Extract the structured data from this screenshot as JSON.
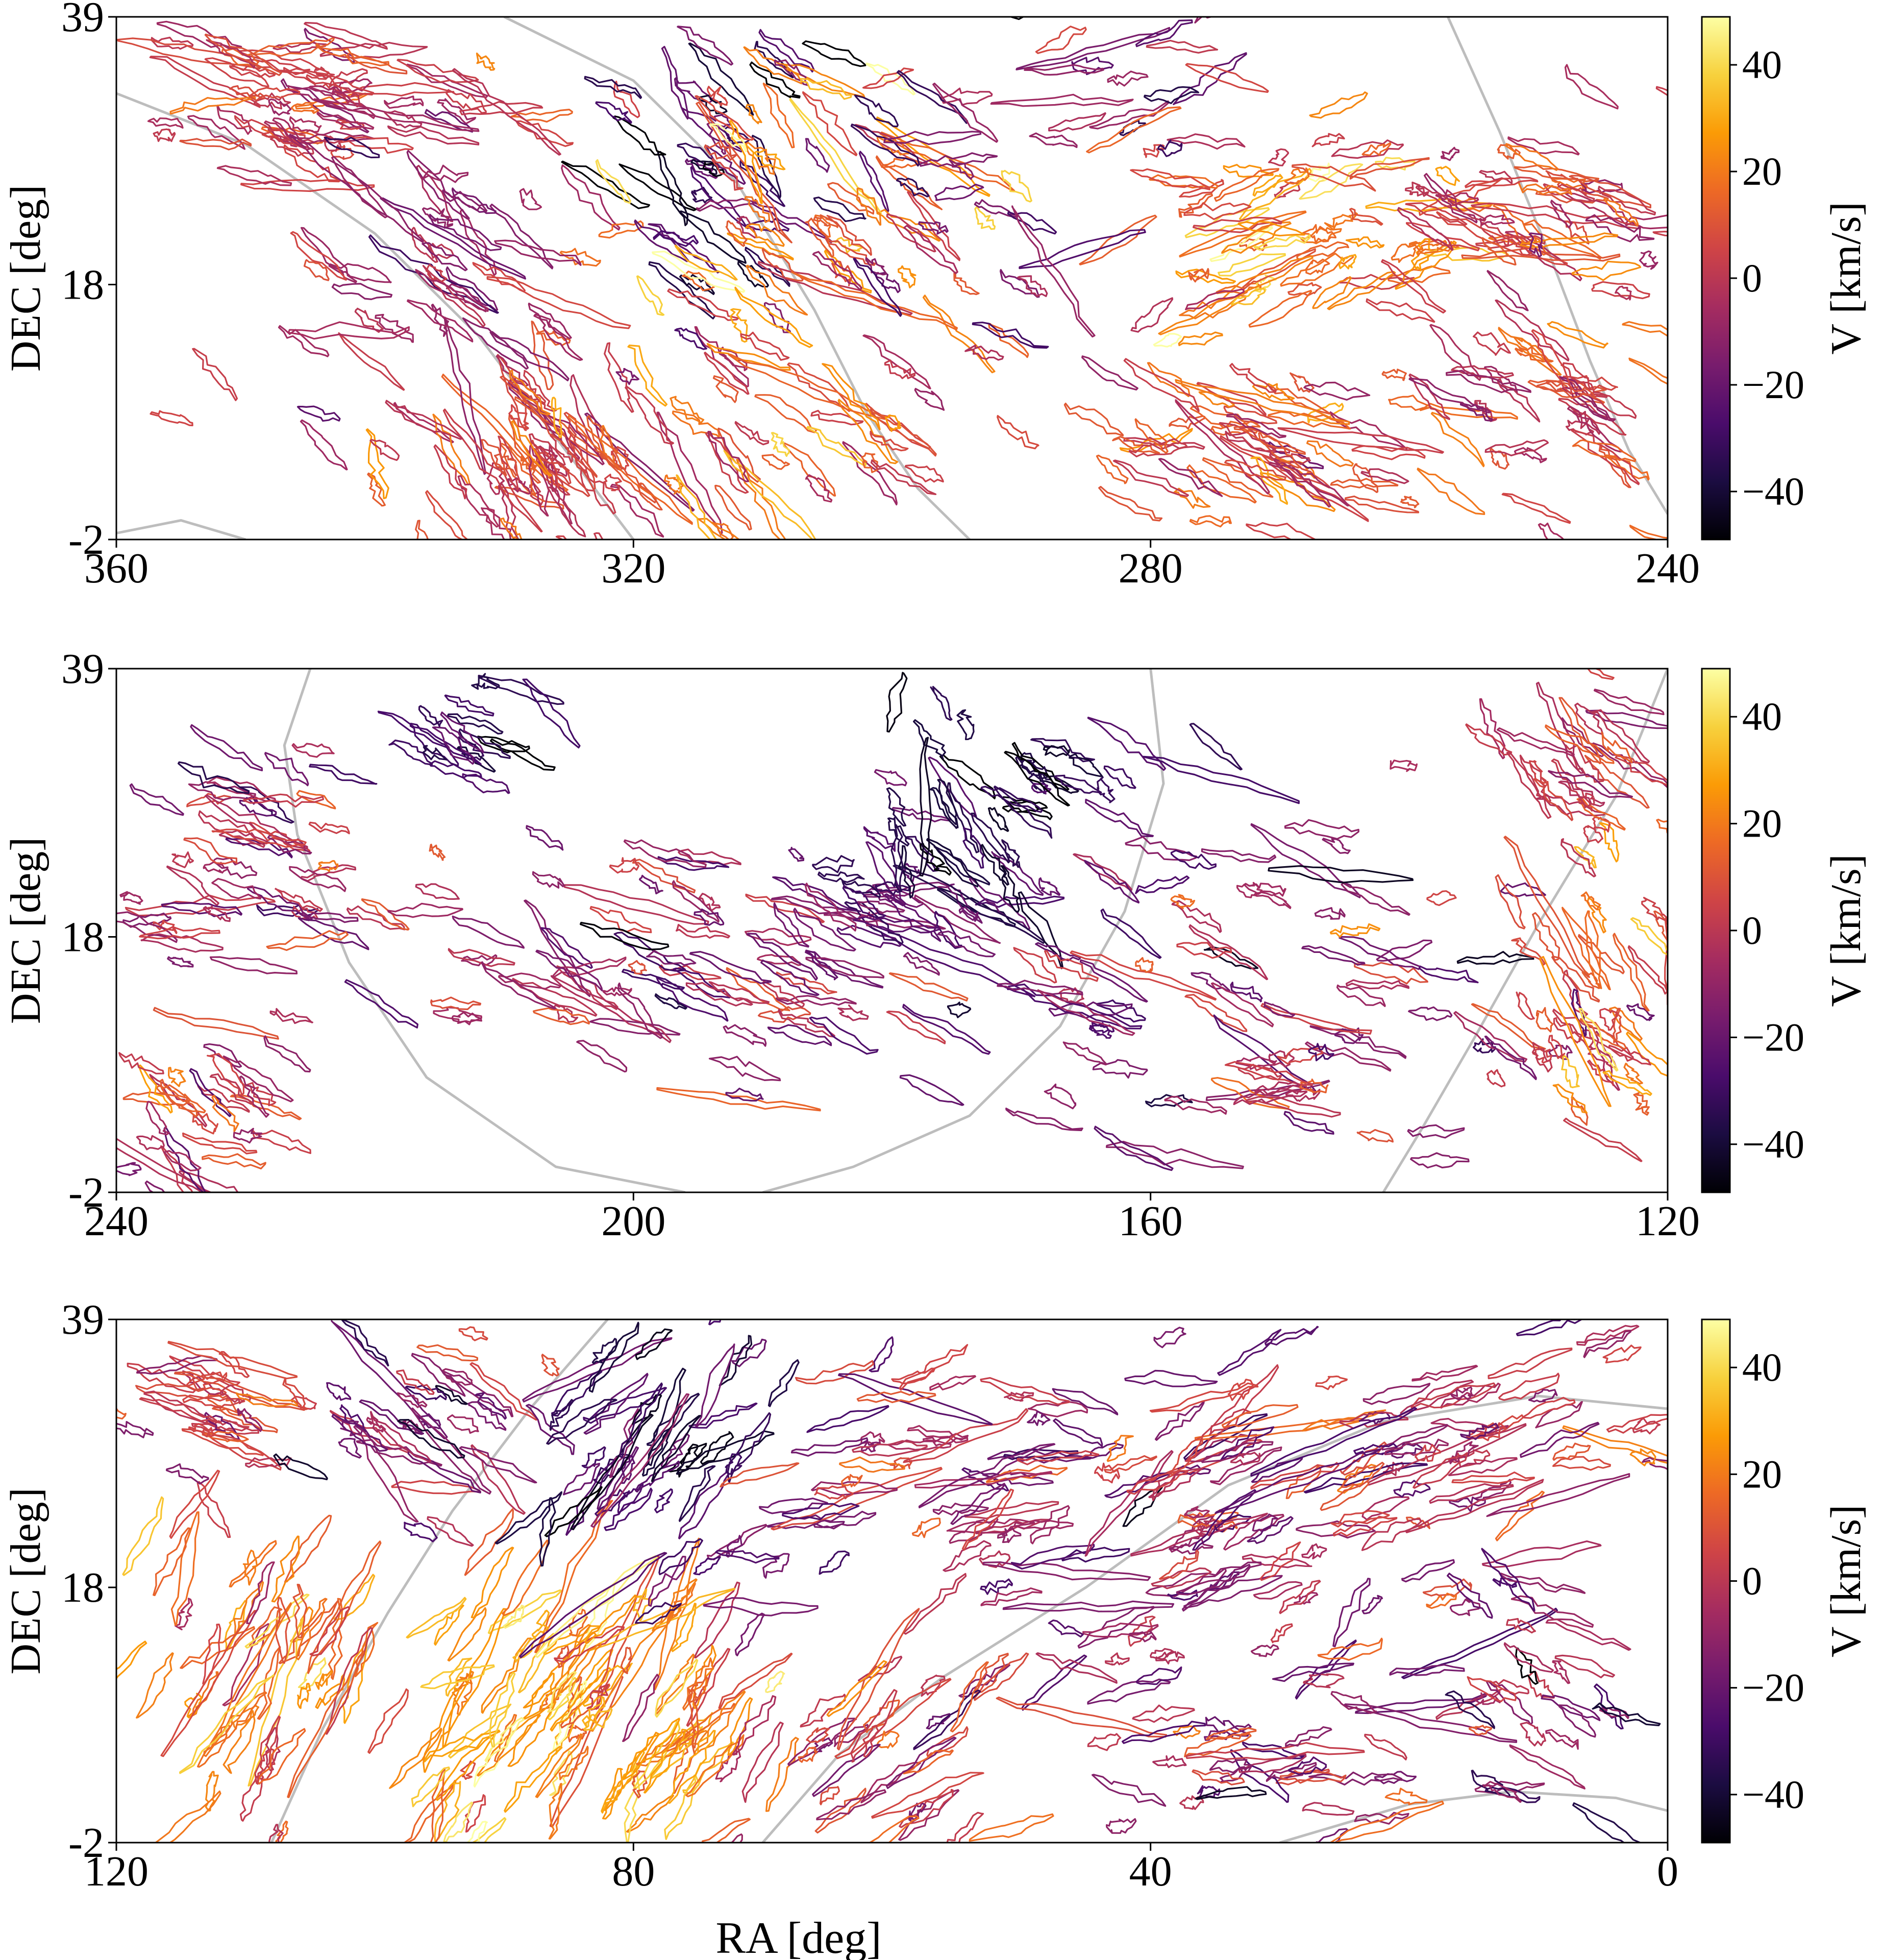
{
  "figure": {
    "xlabel": "RA [deg]"
  },
  "colorbar": {
    "label": "V [km/s]",
    "vmin": -49,
    "vmax": 49,
    "ticks": [
      40,
      20,
      0,
      -20,
      -40
    ],
    "tick_labels": [
      "40",
      "20",
      "0",
      "−20",
      "−40"
    ],
    "colormap": "inferno",
    "stops": [
      "#000004",
      "#1b0c41",
      "#4a0c6b",
      "#781c6d",
      "#a52c60",
      "#cf4446",
      "#ed6925",
      "#fb9b06",
      "#f7d13d",
      "#fcffa4"
    ]
  },
  "curve_color": "#bdbdbd",
  "chart_data": [
    {
      "type": "scatter",
      "panel": "top",
      "ylabel": "DEC [deg]",
      "xlim": [
        360,
        240
      ],
      "ylim": [
        -2,
        39
      ],
      "xticks": [
        360,
        320,
        280,
        240
      ],
      "xtick_labels": [
        "360",
        "320",
        "280",
        "240"
      ],
      "yticks": [
        39,
        18,
        -2
      ],
      "ytick_labels": [
        "39",
        "18",
        "-2"
      ],
      "guide_curves": [
        [
          [
            330,
            39
          ],
          [
            320,
            34
          ],
          [
            312,
            26
          ],
          [
            306,
            16
          ],
          [
            302,
            8
          ],
          [
            298,
            2
          ],
          [
            294,
            -2
          ]
        ],
        [
          [
            257,
            39
          ],
          [
            253,
            30
          ],
          [
            249,
            20
          ],
          [
            246,
            12
          ],
          [
            243,
            5
          ],
          [
            240,
            0
          ]
        ],
        [
          [
            360,
            33
          ],
          [
            350,
            29
          ],
          [
            340,
            22
          ],
          [
            332,
            14
          ],
          [
            326,
            6
          ],
          [
            320,
            -2
          ]
        ],
        [
          [
            360,
            -1.5
          ],
          [
            355,
            -0.5
          ],
          [
            350,
            -2
          ]
        ]
      ],
      "regions": [
        {
          "ra": 345,
          "dec": 33,
          "n": 70,
          "spread_ra": 13,
          "spread_dec": 5,
          "angle": -12,
          "v": 2,
          "dv": 8
        },
        {
          "ra": 327,
          "dec": 5,
          "n": 70,
          "spread_ra": 9,
          "spread_dec": 6,
          "angle": -55,
          "v": 5,
          "dv": 10
        },
        {
          "ra": 336,
          "dec": 20,
          "n": 55,
          "spread_ra": 14,
          "spread_dec": 10,
          "angle": -30,
          "v": -5,
          "dv": 10
        },
        {
          "ra": 314,
          "dec": 28,
          "n": 45,
          "spread_ra": 8,
          "spread_dec": 9,
          "angle": -35,
          "v": -28,
          "dv": 12
        },
        {
          "ra": 308,
          "dec": 24,
          "n": 55,
          "spread_ra": 10,
          "spread_dec": 10,
          "angle": -40,
          "v": 18,
          "dv": 14
        },
        {
          "ra": 306,
          "dec": 6,
          "n": 40,
          "spread_ra": 10,
          "spread_dec": 6,
          "angle": -40,
          "v": 12,
          "dv": 12
        },
        {
          "ra": 267,
          "dec": 20,
          "n": 60,
          "spread_ra": 10,
          "spread_dec": 8,
          "angle": 15,
          "v": 22,
          "dv": 14
        },
        {
          "ra": 272,
          "dec": 5,
          "n": 60,
          "spread_ra": 12,
          "spread_dec": 6,
          "angle": -25,
          "v": 8,
          "dv": 12
        },
        {
          "ra": 250,
          "dec": 24,
          "n": 55,
          "spread_ra": 11,
          "spread_dec": 5,
          "angle": -20,
          "v": 6,
          "dv": 12
        },
        {
          "ra": 247,
          "dec": 8,
          "n": 45,
          "spread_ra": 9,
          "spread_dec": 7,
          "angle": -30,
          "v": 3,
          "dv": 10
        },
        {
          "ra": 283,
          "dec": 30,
          "n": 35,
          "spread_ra": 14,
          "spread_dec": 8,
          "angle": 10,
          "v": -8,
          "dv": 18
        },
        {
          "ra": 296,
          "dec": 22,
          "n": 25,
          "spread_ra": 8,
          "spread_dec": 10,
          "angle": -30,
          "v": -10,
          "dv": 18
        }
      ]
    },
    {
      "type": "scatter",
      "panel": "middle",
      "ylabel": "DEC [deg]",
      "xlim": [
        240,
        120
      ],
      "ylim": [
        -2,
        39
      ],
      "xticks": [
        240,
        200,
        160,
        120
      ],
      "xtick_labels": [
        "240",
        "200",
        "160",
        "120"
      ],
      "yticks": [
        39,
        18,
        -2
      ],
      "ytick_labels": [
        "39",
        "18",
        "-2"
      ],
      "guide_curves": [
        [
          [
            225,
            39
          ],
          [
            227,
            33
          ],
          [
            226,
            26
          ],
          [
            222,
            16
          ],
          [
            216,
            7
          ],
          [
            206,
            0
          ],
          [
            196,
            -2
          ]
        ],
        [
          [
            160,
            39
          ],
          [
            159,
            30
          ],
          [
            162,
            20
          ],
          [
            167,
            11
          ],
          [
            174,
            4
          ],
          [
            183,
            0
          ],
          [
            190,
            -2
          ]
        ],
        [
          [
            120,
            39
          ],
          [
            124,
            29
          ],
          [
            130,
            19
          ],
          [
            135,
            10
          ],
          [
            139,
            3
          ],
          [
            142,
            -2
          ]
        ]
      ],
      "regions": [
        {
          "ra": 230,
          "dec": 24,
          "n": 55,
          "spread_ra": 10,
          "spread_dec": 10,
          "angle": -15,
          "v": -6,
          "dv": 12
        },
        {
          "ra": 233,
          "dec": 4,
          "n": 35,
          "spread_ra": 7,
          "spread_dec": 6,
          "angle": -35,
          "v": 0,
          "dv": 12
        },
        {
          "ra": 198,
          "dec": 16,
          "n": 70,
          "spread_ra": 14,
          "spread_dec": 8,
          "angle": -18,
          "v": -10,
          "dv": 12
        },
        {
          "ra": 180,
          "dec": 20,
          "n": 45,
          "spread_ra": 10,
          "spread_dec": 6,
          "angle": -30,
          "v": -22,
          "dv": 10
        },
        {
          "ra": 175,
          "dec": 26,
          "n": 22,
          "spread_ra": 5,
          "spread_dec": 7,
          "angle": -60,
          "v": -40,
          "dv": 6
        },
        {
          "ra": 168,
          "dec": 30,
          "n": 20,
          "spread_ra": 8,
          "spread_dec": 4,
          "angle": -25,
          "v": -35,
          "dv": 8
        },
        {
          "ra": 160,
          "dec": 14,
          "n": 45,
          "spread_ra": 12,
          "spread_dec": 10,
          "angle": -20,
          "v": -12,
          "dv": 14
        },
        {
          "ra": 145,
          "dec": 12,
          "n": 45,
          "spread_ra": 12,
          "spread_dec": 10,
          "angle": -10,
          "v": -8,
          "dv": 14
        },
        {
          "ra": 126,
          "dec": 14,
          "n": 55,
          "spread_ra": 6,
          "spread_dec": 11,
          "angle": -55,
          "v": 10,
          "dv": 14
        },
        {
          "ra": 127,
          "dec": 32,
          "n": 30,
          "spread_ra": 6,
          "spread_dec": 5,
          "angle": -40,
          "v": 2,
          "dv": 10
        },
        {
          "ra": 212,
          "dec": 34,
          "n": 18,
          "spread_ra": 6,
          "spread_dec": 3,
          "angle": -25,
          "v": -30,
          "dv": 10
        }
      ]
    },
    {
      "type": "scatter",
      "panel": "bottom",
      "ylabel": "DEC [deg]",
      "xlim": [
        120,
        0
      ],
      "ylim": [
        -2,
        39
      ],
      "xticks": [
        120,
        80,
        40,
        0
      ],
      "xtick_labels": [
        "120",
        "80",
        "40",
        "0"
      ],
      "yticks": [
        39,
        18,
        -2
      ],
      "ytick_labels": [
        "39",
        "18",
        "-2"
      ],
      "guide_curves": [
        [
          [
            82,
            39
          ],
          [
            88,
            32
          ],
          [
            94,
            24
          ],
          [
            99,
            16
          ],
          [
            104,
            7
          ],
          [
            108,
            -2
          ]
        ],
        [
          [
            0,
            32
          ],
          [
            10,
            33
          ],
          [
            22,
            31
          ],
          [
            34,
            26
          ],
          [
            45,
            18
          ],
          [
            56,
            11
          ],
          [
            64,
            5
          ],
          [
            70,
            -2
          ]
        ],
        [
          [
            30,
            -2
          ],
          [
            20,
            1
          ],
          [
            12,
            2
          ],
          [
            4,
            1.5
          ],
          [
            0,
            0.5
          ]
        ]
      ],
      "regions": [
        {
          "ra": 112,
          "dec": 32,
          "n": 30,
          "spread_ra": 6,
          "spread_dec": 5,
          "angle": -25,
          "v": 2,
          "dv": 12
        },
        {
          "ra": 110,
          "dec": 12,
          "n": 55,
          "spread_ra": 8,
          "spread_dec": 10,
          "angle": 60,
          "v": 16,
          "dv": 14
        },
        {
          "ra": 97,
          "dec": 30,
          "n": 40,
          "spread_ra": 9,
          "spread_dec": 6,
          "angle": -30,
          "v": -14,
          "dv": 14
        },
        {
          "ra": 90,
          "dec": 8,
          "n": 60,
          "spread_ra": 8,
          "spread_dec": 9,
          "angle": 55,
          "v": 26,
          "dv": 10
        },
        {
          "ra": 78,
          "dec": 8,
          "n": 60,
          "spread_ra": 8,
          "spread_dec": 9,
          "angle": 55,
          "v": 20,
          "dv": 12
        },
        {
          "ra": 77,
          "dec": 28,
          "n": 60,
          "spread_ra": 8,
          "spread_dec": 9,
          "angle": 50,
          "v": -30,
          "dv": 10
        },
        {
          "ra": 55,
          "dec": 26,
          "n": 55,
          "spread_ra": 12,
          "spread_dec": 9,
          "angle": 5,
          "v": -10,
          "dv": 14
        },
        {
          "ra": 35,
          "dec": 22,
          "n": 85,
          "spread_ra": 16,
          "spread_dec": 10,
          "angle": 25,
          "v": -6,
          "dv": 12
        },
        {
          "ra": 16,
          "dec": 30,
          "n": 60,
          "spread_ra": 14,
          "spread_dec": 6,
          "angle": 15,
          "v": -4,
          "dv": 12
        },
        {
          "ra": 30,
          "dec": 6,
          "n": 55,
          "spread_ra": 16,
          "spread_dec": 7,
          "angle": 0,
          "v": -6,
          "dv": 14
        },
        {
          "ra": 60,
          "dec": 6,
          "n": 40,
          "spread_ra": 10,
          "spread_dec": 7,
          "angle": 40,
          "v": 0,
          "dv": 14
        },
        {
          "ra": 8,
          "dec": 10,
          "n": 30,
          "spread_ra": 7,
          "spread_dec": 8,
          "angle": -30,
          "v": -12,
          "dv": 12
        }
      ]
    }
  ]
}
